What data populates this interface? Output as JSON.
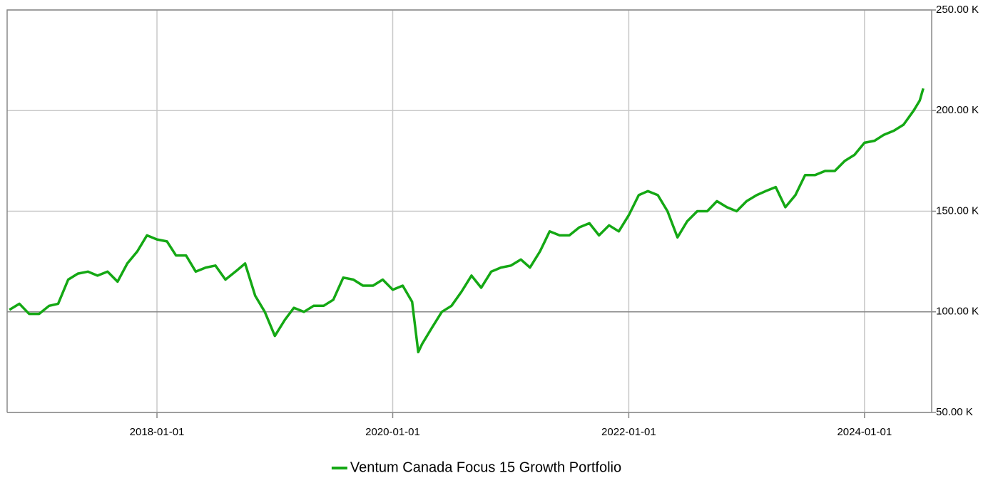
{
  "chart_data": {
    "type": "line",
    "x": [
      "2016-10-01",
      "2016-11-01",
      "2016-12-01",
      "2017-01-01",
      "2017-02-01",
      "2017-03-01",
      "2017-04-01",
      "2017-05-01",
      "2017-06-01",
      "2017-07-01",
      "2017-08-01",
      "2017-09-01",
      "2017-10-01",
      "2017-11-01",
      "2017-12-01",
      "2018-01-01",
      "2018-02-01",
      "2018-03-01",
      "2018-04-01",
      "2018-05-01",
      "2018-06-01",
      "2018-07-01",
      "2018-08-01",
      "2018-09-01",
      "2018-10-01",
      "2018-11-01",
      "2018-12-01",
      "2019-01-01",
      "2019-02-01",
      "2019-03-01",
      "2019-04-01",
      "2019-05-01",
      "2019-06-01",
      "2019-07-01",
      "2019-08-01",
      "2019-09-01",
      "2019-10-01",
      "2019-11-01",
      "2019-12-01",
      "2020-01-01",
      "2020-02-01",
      "2020-03-01",
      "2020-03-20",
      "2020-04-01",
      "2020-05-01",
      "2020-06-01",
      "2020-07-01",
      "2020-08-01",
      "2020-09-01",
      "2020-10-01",
      "2020-11-01",
      "2020-12-01",
      "2021-01-01",
      "2021-02-01",
      "2021-03-01",
      "2021-04-01",
      "2021-05-01",
      "2021-06-01",
      "2021-07-01",
      "2021-08-01",
      "2021-09-01",
      "2021-10-01",
      "2021-11-01",
      "2021-12-01",
      "2022-01-01",
      "2022-02-01",
      "2022-03-01",
      "2022-04-01",
      "2022-05-01",
      "2022-06-01",
      "2022-07-01",
      "2022-08-01",
      "2022-09-01",
      "2022-10-01",
      "2022-11-01",
      "2022-12-01",
      "2023-01-01",
      "2023-02-01",
      "2023-03-01",
      "2023-04-01",
      "2023-05-01",
      "2023-06-01",
      "2023-07-01",
      "2023-08-01",
      "2023-09-01",
      "2023-10-01",
      "2023-11-01",
      "2023-12-01",
      "2024-01-01",
      "2024-02-01",
      "2024-03-01",
      "2024-04-01",
      "2024-05-01",
      "2024-06-01",
      "2024-06-20",
      "2024-07-01"
    ],
    "series": [
      {
        "name": "Ventum Canada Focus 15 Growth Portfolio",
        "color": "#14a814",
        "values": [
          101000,
          104000,
          99000,
          99000,
          103000,
          104000,
          116000,
          119000,
          120000,
          118000,
          120000,
          115000,
          124000,
          130000,
          138000,
          136000,
          135000,
          128000,
          128000,
          120000,
          122000,
          123000,
          116000,
          120000,
          124000,
          108000,
          100000,
          88000,
          96000,
          102000,
          100000,
          103000,
          103000,
          106000,
          117000,
          116000,
          113000,
          113000,
          116000,
          111000,
          113000,
          105000,
          80000,
          84000,
          92000,
          100000,
          103000,
          110000,
          118000,
          112000,
          120000,
          122000,
          123000,
          126000,
          122000,
          130000,
          140000,
          138000,
          138000,
          142000,
          144000,
          138000,
          143000,
          140000,
          148000,
          158000,
          160000,
          158000,
          150000,
          137000,
          145000,
          150000,
          150000,
          155000,
          152000,
          150000,
          155000,
          158000,
          160000,
          162000,
          152000,
          158000,
          168000,
          168000,
          170000,
          170000,
          175000,
          178000,
          184000,
          185000,
          188000,
          190000,
          193000,
          200000,
          205000,
          211000
        ]
      }
    ],
    "xlim": [
      "2016-09-24",
      "2024-07-27"
    ],
    "xticks": [
      "2018-01-01",
      "2020-01-01",
      "2022-01-01",
      "2024-01-01"
    ],
    "ylim": [
      50000,
      250000
    ],
    "yticks": [
      {
        "value": 50000,
        "label": "50.00 K"
      },
      {
        "value": 100000,
        "label": "100.00 K"
      },
      {
        "value": 150000,
        "label": "150.00 K"
      },
      {
        "value": 200000,
        "label": "200.00 K"
      },
      {
        "value": 250000,
        "label": "250.00 K"
      }
    ],
    "baseline": 100000,
    "grid": true,
    "legend": "bottom"
  }
}
